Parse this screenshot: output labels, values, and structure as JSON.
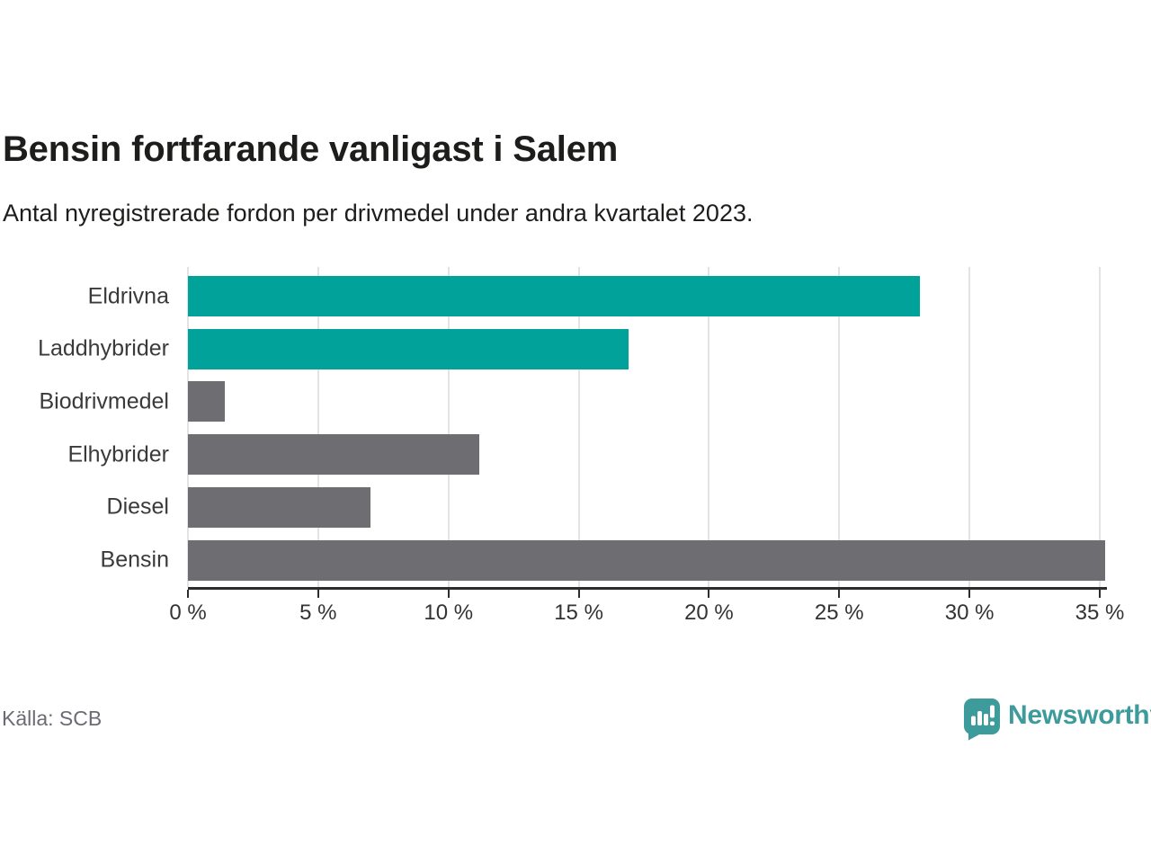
{
  "chart_data": {
    "type": "bar",
    "orientation": "horizontal",
    "title": "Bensin fortfarande vanligast i Salem",
    "subtitle": "Antal nyregistrerade fordon per drivmedel under andra kvartalet 2023.",
    "categories": [
      "Eldrivna",
      "Laddhybrider",
      "Biodrivmedel",
      "Elhybrider",
      "Diesel",
      "Bensin"
    ],
    "values": [
      28.1,
      16.9,
      1.4,
      11.2,
      7.0,
      35.2
    ],
    "unit": "%",
    "bar_colors": [
      "#00a29a",
      "#00a29a",
      "#6e6e72",
      "#6e6e72",
      "#6e6e72",
      "#6e6e72"
    ],
    "highlight_color": "#00a29a",
    "default_color": "#6e6e72",
    "xlim": [
      0,
      35.2
    ],
    "x_ticks": [
      {
        "value": 0,
        "label": "0 %"
      },
      {
        "value": 5,
        "label": "5 %"
      },
      {
        "value": 10,
        "label": "10 %"
      },
      {
        "value": 15,
        "label": "15 %"
      },
      {
        "value": 20,
        "label": "20 %"
      },
      {
        "value": 25,
        "label": "25 %"
      },
      {
        "value": 30,
        "label": "30 %"
      },
      {
        "value": 35,
        "label": "35 %"
      }
    ],
    "grid": "vertical-gridlines",
    "legend": "none"
  },
  "source": {
    "label": "Källa: SCB"
  },
  "brand": {
    "name": "Newsworthy",
    "color": "#3d9b9b",
    "icon": "newsworthy-speech-bubble-bar-chart-icon"
  }
}
